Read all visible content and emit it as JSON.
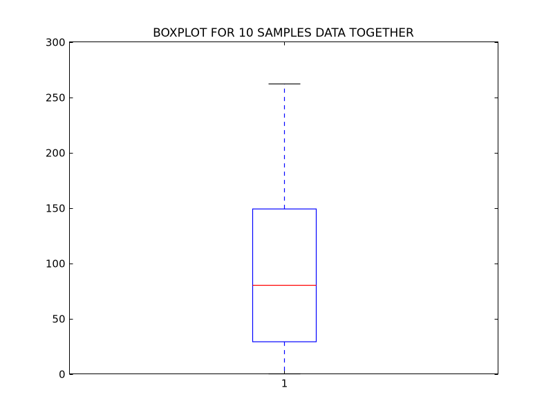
{
  "chart_data": {
    "type": "boxplot",
    "title": "BOXPLOT FOR 10 SAMPLES DATA TOGETHER",
    "xlabel": "",
    "ylabel": "",
    "categories": [
      "1"
    ],
    "ylim": [
      0,
      300
    ],
    "yticks": [
      0,
      50,
      100,
      150,
      200,
      250,
      300
    ],
    "ytick_labels": [
      "0",
      "50",
      "100",
      "150",
      "200",
      "250",
      "300"
    ],
    "grid": false,
    "legend": "none",
    "boxes": [
      {
        "category": "1",
        "whisker_low": 0,
        "q1": 29,
        "median": 80,
        "q3": 149,
        "whisker_high": 262
      }
    ],
    "colors": {
      "box": "#0000ff",
      "median": "#ff0000",
      "whisker": "#0000ff",
      "cap": "#000000",
      "axes": "#000000",
      "background": "#ffffff"
    }
  }
}
